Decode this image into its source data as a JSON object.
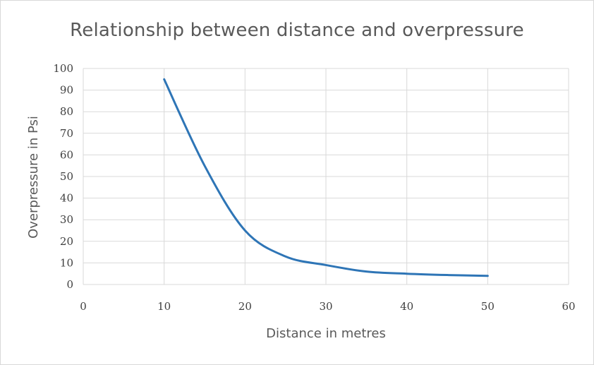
{
  "chart_data": {
    "type": "line",
    "title": "Relationship between distance and overpressure",
    "xlabel": "Distance in metres",
    "ylabel": "Overpressure in Psi",
    "xlim": [
      0,
      60
    ],
    "ylim": [
      0,
      100
    ],
    "xticks": [
      0,
      10,
      20,
      30,
      40,
      50,
      60
    ],
    "yticks": [
      0,
      10,
      20,
      30,
      40,
      50,
      60,
      70,
      80,
      90,
      100
    ],
    "grid": true,
    "legend": "none",
    "colors": {
      "line": "#2e75b6",
      "grid": "#d9d9d9",
      "text": "#595959"
    },
    "series": [
      {
        "x": [
          10,
          15,
          20,
          25,
          30,
          35,
          40,
          45,
          50
        ],
        "y": [
          95,
          55,
          25,
          13,
          9,
          6,
          5,
          4.4,
          4
        ]
      }
    ]
  }
}
